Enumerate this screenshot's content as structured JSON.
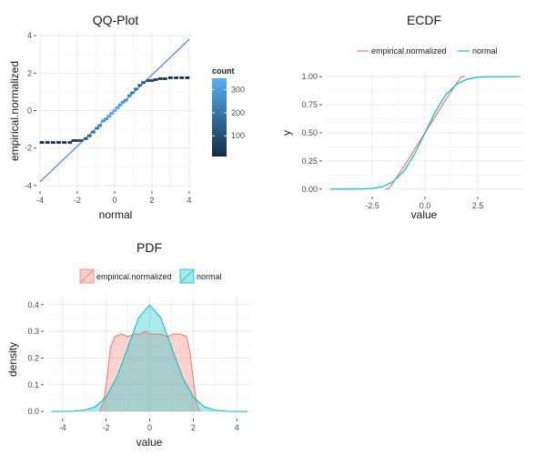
{
  "chart_data": [
    {
      "type": "scatter",
      "title": "QQ-Plot",
      "xlabel": "normal",
      "ylabel": "empirical.normalized",
      "xlim": [
        -4,
        4.2
      ],
      "ylim": [
        -4.2,
        4.2
      ],
      "x_ticks": [
        "-4",
        "-2",
        "0",
        "2",
        "4"
      ],
      "y_ticks": [
        "-4",
        "-2",
        "0",
        "2",
        "4"
      ],
      "x_tick_values": [
        -4,
        -2,
        0,
        2,
        4
      ],
      "y_tick_values": [
        -4,
        -2,
        0,
        2,
        4
      ],
      "reference_line": [
        [
          -4,
          -3.8
        ],
        [
          4,
          3.8
        ]
      ],
      "legend": {
        "title": "count",
        "ticks": [
          "300",
          "200",
          "100"
        ],
        "tick_values": [
          300,
          200,
          100
        ],
        "range": [
          10,
          350
        ],
        "placement": "right"
      },
      "series": [
        {
          "x": [
            -3.9,
            -3.6,
            -3.3,
            -3.0,
            -2.7,
            -2.4,
            -2.2,
            -2.0,
            -1.8,
            -1.55,
            -1.35,
            -1.15,
            -0.95,
            -0.8,
            -0.6,
            -0.45,
            -0.3,
            -0.15,
            0.0,
            0.15,
            0.3,
            0.45,
            0.6,
            0.8,
            0.95,
            1.15,
            1.35,
            1.55,
            1.8,
            2.0,
            2.2,
            2.45,
            2.7,
            3.0,
            3.3,
            3.6,
            3.9
          ],
          "y": [
            -1.7,
            -1.7,
            -1.7,
            -1.7,
            -1.7,
            -1.7,
            -1.6,
            -1.6,
            -1.6,
            -1.5,
            -1.35,
            -1.15,
            -0.95,
            -0.8,
            -0.55,
            -0.45,
            -0.3,
            -0.15,
            0.0,
            0.15,
            0.3,
            0.45,
            0.55,
            0.8,
            0.95,
            1.15,
            1.35,
            1.5,
            1.6,
            1.6,
            1.65,
            1.7,
            1.7,
            1.75,
            1.75,
            1.75,
            1.75
          ],
          "count": [
            10,
            12,
            15,
            18,
            25,
            35,
            50,
            70,
            90,
            120,
            150,
            180,
            210,
            240,
            260,
            280,
            300,
            320,
            340,
            320,
            300,
            280,
            260,
            240,
            210,
            180,
            150,
            120,
            90,
            70,
            50,
            35,
            25,
            18,
            15,
            12,
            10
          ]
        }
      ]
    },
    {
      "type": "line",
      "title": "ECDF",
      "xlabel": "value",
      "ylabel": "y",
      "xlim": [
        -4.7,
        4.7
      ],
      "ylim": [
        -0.05,
        1.05
      ],
      "x_ticks": [
        "-2.5",
        "0.0",
        "2.5"
      ],
      "y_ticks": [
        "0.00",
        "0.25",
        "0.50",
        "0.75",
        "1.00"
      ],
      "x_tick_values": [
        -2.5,
        0,
        2.5
      ],
      "y_tick_values": [
        0,
        0.25,
        0.5,
        0.75,
        1
      ],
      "legend_placement": "top",
      "series": [
        {
          "name": "empirical.normalized",
          "color": "#F8766D",
          "x": [
            -1.9,
            -1.73,
            -1.5,
            -1.0,
            -0.5,
            0.0,
            0.5,
            1.0,
            1.5,
            1.73,
            1.9
          ],
          "y": [
            0.0,
            0.0,
            0.06,
            0.2,
            0.35,
            0.5,
            0.65,
            0.8,
            0.94,
            1.0,
            1.0
          ]
        },
        {
          "name": "normal",
          "color": "#00BFC4",
          "x": [
            -4.5,
            -3,
            -2.5,
            -2,
            -1.5,
            -1,
            -0.5,
            0,
            0.5,
            1,
            1.5,
            2,
            2.5,
            3,
            4.5
          ],
          "y": [
            0.0,
            0.001,
            0.006,
            0.023,
            0.067,
            0.159,
            0.309,
            0.5,
            0.691,
            0.841,
            0.933,
            0.977,
            0.994,
            0.999,
            1.0
          ]
        }
      ]
    },
    {
      "type": "area",
      "title": "PDF",
      "xlabel": "value",
      "ylabel": "density",
      "xlim": [
        -4.7,
        4.7
      ],
      "ylim": [
        -0.02,
        0.43
      ],
      "x_ticks": [
        "-4",
        "-2",
        "0",
        "2",
        "4"
      ],
      "y_ticks": [
        "0.0",
        "0.1",
        "0.2",
        "0.3",
        "0.4"
      ],
      "x_tick_values": [
        -4,
        -2,
        0,
        2,
        4
      ],
      "y_tick_values": [
        0,
        0.1,
        0.2,
        0.3,
        0.4
      ],
      "legend_placement": "top",
      "series": [
        {
          "name": "empirical.normalized",
          "color": "#F8766D",
          "x": [
            -2.3,
            -2.1,
            -1.95,
            -1.8,
            -1.6,
            -1.3,
            -1.0,
            -0.7,
            -0.4,
            -0.2,
            0.0,
            0.2,
            0.5,
            0.8,
            1.1,
            1.4,
            1.7,
            1.85,
            2.0,
            2.15,
            2.3
          ],
          "y": [
            0.0,
            0.04,
            0.13,
            0.24,
            0.28,
            0.29,
            0.28,
            0.29,
            0.29,
            0.3,
            0.29,
            0.29,
            0.29,
            0.28,
            0.29,
            0.29,
            0.28,
            0.22,
            0.12,
            0.03,
            0.0
          ]
        },
        {
          "name": "normal",
          "color": "#00BFC4",
          "x": [
            -4.5,
            -4.0,
            -3.5,
            -3.0,
            -2.5,
            -2.0,
            -1.5,
            -1.0,
            -0.5,
            0.0,
            0.5,
            1.0,
            1.5,
            2.0,
            2.5,
            3.0,
            3.5,
            4.0,
            4.5
          ],
          "y": [
            0.0,
            0.0001,
            0.0009,
            0.0044,
            0.0175,
            0.054,
            0.1295,
            0.242,
            0.352,
            0.3989,
            0.352,
            0.242,
            0.1295,
            0.054,
            0.0175,
            0.0044,
            0.0009,
            0.0001,
            0.0
          ]
        }
      ]
    }
  ]
}
